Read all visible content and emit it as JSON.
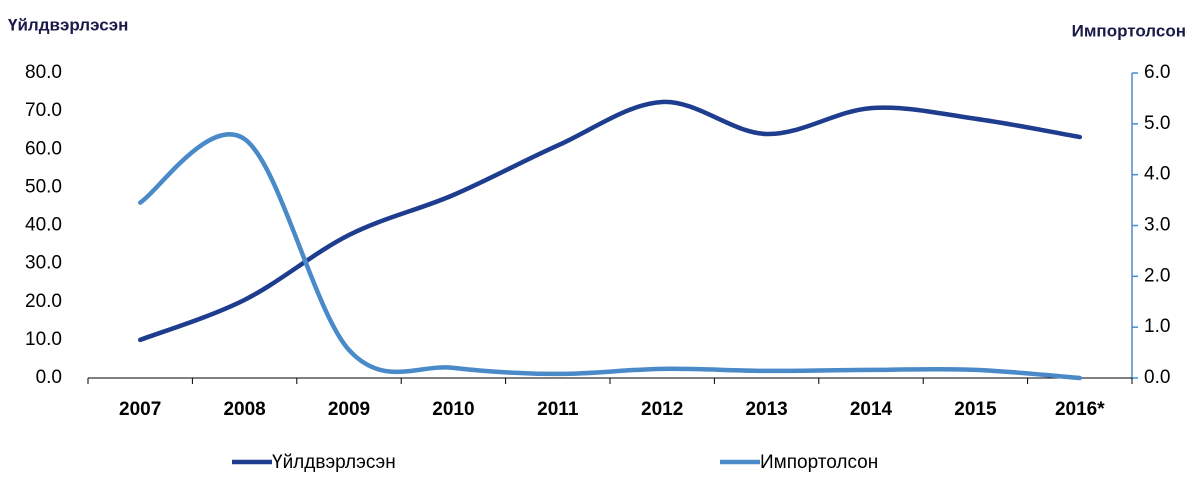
{
  "chart_data": {
    "type": "line",
    "y_label": "Үйлдвэрлэсэн",
    "y2_label": "Импортолсон",
    "categories": [
      "2007",
      "2008",
      "2009",
      "2010",
      "2011",
      "2012",
      "2013",
      "2014",
      "2015",
      "2016*"
    ],
    "series": [
      {
        "name": "Үйлдвэрлэсэн",
        "color": "#1f3d8f",
        "values": [
          10.0,
          20.5,
          37.5,
          48.0,
          61.0,
          72.4,
          64.0,
          70.8,
          68.0,
          63.2
        ]
      },
      {
        "name": "Импортолсон",
        "color": "#4a8ac9",
        "axis": "y2",
        "values": [
          3.45,
          4.7,
          0.55,
          0.2,
          0.08,
          0.18,
          0.14,
          0.16,
          0.16,
          0.0
        ]
      }
    ],
    "ylim": [
      0,
      80
    ],
    "yticks": [
      {
        "value": 0,
        "label": "0.0"
      },
      {
        "value": 10,
        "label": "10.0"
      },
      {
        "value": 20,
        "label": "20.0"
      },
      {
        "value": 30,
        "label": "30.0"
      },
      {
        "value": 40,
        "label": "40.0"
      },
      {
        "value": 50,
        "label": "50.0"
      },
      {
        "value": 60,
        "label": "60.0"
      },
      {
        "value": 70,
        "label": "70.0"
      },
      {
        "value": 80,
        "label": "80.0"
      }
    ],
    "y2lim": [
      0,
      6
    ],
    "y2ticks": [
      {
        "value": 0,
        "label": "0.0"
      },
      {
        "value": 1,
        "label": "1.0"
      },
      {
        "value": 2,
        "label": "2.0"
      },
      {
        "value": 3,
        "label": "3.0"
      },
      {
        "value": 4,
        "label": "4.0"
      },
      {
        "value": 5,
        "label": "5.0"
      },
      {
        "value": 6,
        "label": "6.0"
      }
    ],
    "legend": "bottom"
  }
}
